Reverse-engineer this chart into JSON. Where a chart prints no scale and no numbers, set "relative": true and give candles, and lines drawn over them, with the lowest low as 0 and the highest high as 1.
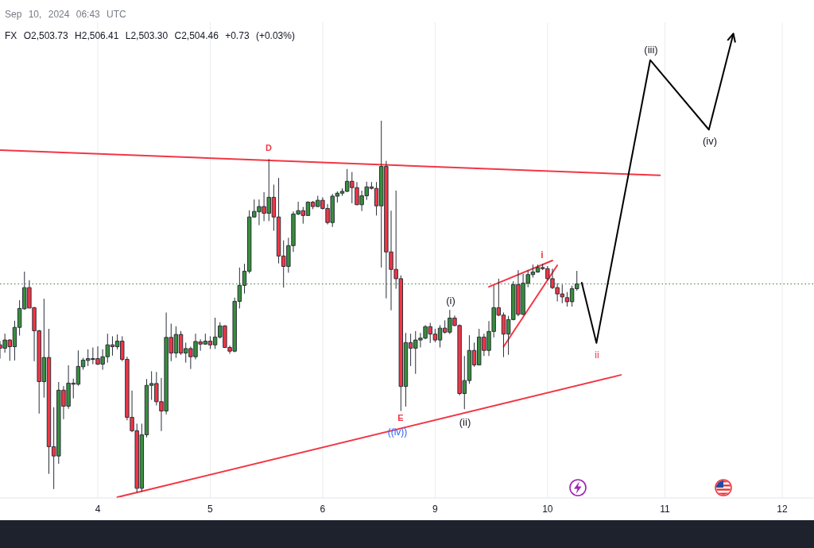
{
  "chart_data": {
    "type": "candlestick",
    "relative": true,
    "grid": "x",
    "categories": [
      null,
      null,
      null,
      null,
      null,
      null,
      null,
      null,
      null,
      null,
      null,
      null,
      null,
      null,
      null,
      null,
      null,
      null,
      null,
      null,
      "4",
      null,
      null,
      null,
      null,
      null,
      null,
      null,
      null,
      null,
      null,
      null,
      null,
      null,
      null,
      null,
      null,
      null,
      null,
      null,
      null,
      null,
      null,
      "5",
      null,
      null,
      null,
      null,
      null,
      null,
      null,
      null,
      null,
      null,
      null,
      null,
      null,
      null,
      null,
      null,
      null,
      null,
      null,
      null,
      null,
      null,
      "6",
      null,
      null,
      null,
      null,
      null,
      null,
      null,
      null,
      null,
      null,
      null,
      null,
      null,
      null,
      null,
      null,
      null,
      null,
      null,
      null,
      null,
      null,
      "9",
      null,
      null,
      null,
      null,
      null,
      null,
      null,
      null,
      null,
      null,
      null,
      null,
      null,
      null,
      null,
      null,
      null,
      null,
      null,
      null,
      null,
      null,
      "10",
      null,
      null,
      null,
      null,
      null,
      null,
      null,
      null,
      null,
      null,
      null,
      null,
      null,
      null,
      null,
      null,
      null,
      null,
      null,
      null,
      null,
      null,
      null,
      "11",
      null,
      null,
      null,
      null,
      null,
      null,
      null,
      null,
      null,
      null,
      null,
      null,
      null,
      null,
      null,
      null,
      null,
      null,
      null,
      null,
      null,
      null,
      null,
      "12",
      null,
      null,
      null,
      null,
      null,
      null
    ],
    "ohlc": [
      [
        0.397,
        0.407,
        0.36,
        0.388
      ],
      [
        0.388,
        0.427,
        0.376,
        0.41
      ],
      [
        0.41,
        0.412,
        0.354,
        0.392
      ],
      [
        0.392,
        0.462,
        0.355,
        0.444
      ],
      [
        0.444,
        0.517,
        0.422,
        0.495
      ],
      [
        0.494,
        0.594,
        0.491,
        0.551
      ],
      [
        0.551,
        0.571,
        0.496,
        0.496
      ],
      [
        0.497,
        0.499,
        0.353,
        0.435
      ],
      [
        0.435,
        0.437,
        0.212,
        0.298
      ],
      [
        0.298,
        0.521,
        0.255,
        0.363
      ],
      [
        0.363,
        0.44,
        0.05,
        0.123
      ],
      [
        0.123,
        0.229,
        0.009,
        0.098
      ],
      [
        0.098,
        0.297,
        0.077,
        0.275
      ],
      [
        0.275,
        0.286,
        0.197,
        0.232
      ],
      [
        0.232,
        0.342,
        0.225,
        0.294
      ],
      [
        0.294,
        0.306,
        0.253,
        0.291
      ],
      [
        0.291,
        0.382,
        0.287,
        0.339
      ],
      [
        0.338,
        0.362,
        0.33,
        0.356
      ],
      [
        0.355,
        0.385,
        0.34,
        0.36
      ],
      [
        0.359,
        0.39,
        0.345,
        0.36
      ],
      [
        0.36,
        0.393,
        0.343,
        0.345
      ],
      [
        0.345,
        0.385,
        0.33,
        0.365
      ],
      [
        0.365,
        0.427,
        0.349,
        0.397
      ],
      [
        0.397,
        0.42,
        0.368,
        0.392
      ],
      [
        0.392,
        0.425,
        0.385,
        0.407
      ],
      [
        0.407,
        0.42,
        0.353,
        0.358
      ],
      [
        0.358,
        0.365,
        0.194,
        0.202
      ],
      [
        0.202,
        0.274,
        0.162,
        0.166
      ],
      [
        0.166,
        0.185,
        0,
        0.011
      ],
      [
        0.011,
        0.185,
        0.002,
        0.155
      ],
      [
        0.155,
        0.305,
        0.148,
        0.288
      ],
      [
        0.288,
        0.326,
        0.249,
        0.293
      ],
      [
        0.293,
        0.324,
        0.234,
        0.244
      ],
      [
        0.244,
        0.308,
        0.165,
        0.219
      ],
      [
        0.219,
        0.484,
        0.21,
        0.417
      ],
      [
        0.417,
        0.454,
        0.353,
        0.375
      ],
      [
        0.375,
        0.447,
        0.362,
        0.425
      ],
      [
        0.425,
        0.434,
        0.37,
        0.375
      ],
      [
        0.375,
        0.403,
        0.349,
        0.387
      ],
      [
        0.387,
        0.392,
        0.332,
        0.365
      ],
      [
        0.365,
        0.427,
        0.358,
        0.406
      ],
      [
        0.405,
        0.412,
        0.381,
        0.399
      ],
      [
        0.399,
        0.427,
        0.397,
        0.407
      ],
      [
        0.407,
        0.42,
        0.386,
        0.397
      ],
      [
        0.397,
        0.47,
        0.386,
        0.418
      ],
      [
        0.418,
        0.458,
        0.414,
        0.448
      ],
      [
        0.448,
        0.45,
        0.389,
        0.39
      ],
      [
        0.39,
        0.395,
        0.373,
        0.38
      ],
      [
        0.38,
        0.524,
        0.377,
        0.514
      ],
      [
        0.514,
        0.605,
        0.495,
        0.557
      ],
      [
        0.557,
        0.615,
        0.535,
        0.595
      ],
      [
        0.595,
        0.759,
        0.589,
        0.741
      ],
      [
        0.741,
        0.788,
        0.739,
        0.756
      ],
      [
        0.755,
        0.788,
        0.719,
        0.769
      ],
      [
        0.769,
        0.808,
        0.73,
        0.751
      ],
      [
        0.751,
        0.897,
        0.73,
        0.794
      ],
      [
        0.794,
        0.828,
        0.704,
        0.741
      ],
      [
        0.741,
        0.846,
        0.616,
        0.636
      ],
      [
        0.636,
        0.678,
        0.551,
        0.608
      ],
      [
        0.608,
        0.685,
        0.591,
        0.664
      ],
      [
        0.664,
        0.756,
        0.647,
        0.749
      ],
      [
        0.749,
        0.782,
        0.746,
        0.758
      ],
      [
        0.758,
        0.768,
        0.723,
        0.745
      ],
      [
        0.745,
        0.783,
        0.744,
        0.781
      ],
      [
        0.781,
        0.784,
        0.762,
        0.769
      ],
      [
        0.769,
        0.798,
        0.768,
        0.786
      ],
      [
        0.786,
        0.794,
        0.761,
        0.764
      ],
      [
        0.764,
        0.776,
        0.721,
        0.726
      ],
      [
        0.726,
        0.803,
        0.714,
        0.797
      ],
      [
        0.797,
        0.81,
        0.78,
        0.805
      ],
      [
        0.805,
        0.818,
        0.798,
        0.81
      ],
      [
        0.81,
        0.87,
        0.808,
        0.837
      ],
      [
        0.837,
        0.862,
        0.778,
        0.82
      ],
      [
        0.82,
        0.835,
        0.773,
        0.774
      ],
      [
        0.774,
        0.812,
        0.757,
        0.798
      ],
      [
        0.798,
        0.836,
        0.787,
        0.822
      ],
      [
        0.822,
        0.835,
        0.815,
        0.818
      ],
      [
        0.818,
        0.835,
        0.745,
        0.771
      ],
      [
        0.771,
        1,
        0.605,
        0.877
      ],
      [
        0.877,
        0.892,
        0.522,
        0.647
      ],
      [
        0.647,
        0.758,
        0.49,
        0.6
      ],
      [
        0.6,
        0.812,
        0.548,
        0.575
      ],
      [
        0.575,
        0.584,
        0.219,
        0.285
      ],
      [
        0.285,
        0.429,
        0.231,
        0.403
      ],
      [
        0.403,
        0.427,
        0.34,
        0.388
      ],
      [
        0.388,
        0.434,
        0.319,
        0.41
      ],
      [
        0.41,
        0.429,
        0.39,
        0.415
      ],
      [
        0.415,
        0.45,
        0.412,
        0.446
      ],
      [
        0.446,
        0.456,
        0.402,
        0.426
      ],
      [
        0.426,
        0.44,
        0.404,
        0.41
      ],
      [
        0.41,
        0.45,
        0.39,
        0.442
      ],
      [
        0.442,
        0.463,
        0.427,
        0.431
      ],
      [
        0.431,
        0.491,
        0.426,
        0.469
      ],
      [
        0.469,
        0.476,
        0.447,
        0.449
      ],
      [
        0.449,
        0.452,
        0.261,
        0.266
      ],
      [
        0.266,
        0.367,
        0.224,
        0.301
      ],
      [
        0.301,
        0.423,
        0.292,
        0.382
      ],
      [
        0.382,
        0.403,
        0.338,
        0.343
      ],
      [
        0.343,
        0.44,
        0.342,
        0.418
      ],
      [
        0.418,
        0.427,
        0.367,
        0.382
      ],
      [
        0.382,
        0.461,
        0.367,
        0.433
      ],
      [
        0.433,
        0.557,
        0.417,
        0.497
      ],
      [
        0.497,
        0.575,
        0.474,
        0.477
      ],
      [
        0.477,
        0.484,
        0.364,
        0.426
      ],
      [
        0.426,
        0.475,
        0.37,
        0.465
      ],
      [
        0.465,
        0.568,
        0.463,
        0.559
      ],
      [
        0.559,
        0.598,
        0.474,
        0.479
      ],
      [
        0.479,
        0.588,
        0.477,
        0.563
      ],
      [
        0.563,
        0.598,
        0.552,
        0.586
      ],
      [
        0.586,
        0.613,
        0.578,
        0.593
      ],
      [
        0.593,
        0.613,
        0.591,
        0.605
      ],
      [
        0.605,
        0.615,
        0.598,
        0.602
      ],
      [
        0.602,
        0.609,
        0.57,
        0.575
      ],
      [
        0.575,
        0.602,
        0.547,
        0.551
      ],
      [
        0.551,
        0.563,
        0.514,
        0.534
      ],
      [
        0.534,
        0.559,
        0.509,
        0.526
      ],
      [
        0.524,
        0.539,
        0.5,
        0.513
      ],
      [
        0.513,
        0.556,
        0.5,
        0.548
      ],
      [
        0.548,
        0.596,
        0.543,
        0.561
      ],
      null,
      null,
      null,
      null,
      null,
      null,
      null,
      null,
      null,
      null,
      null,
      null,
      null,
      null,
      null,
      null,
      null,
      null,
      null,
      null,
      null,
      null,
      null,
      null,
      null,
      null,
      null,
      null,
      null,
      null,
      null,
      null,
      null,
      null,
      null,
      null,
      null,
      null,
      null,
      null,
      null,
      null,
      null,
      null,
      null,
      null,
      null,
      null
    ],
    "colors": [
      "#f23645",
      "#388e3c",
      "#f23645",
      "#388e3c",
      "#388e3c",
      "#388e3c",
      "#f23645",
      "#f23645",
      "#f23645",
      "#388e3c",
      "#f23645",
      "#f23645",
      "#388e3c",
      "#f23645",
      "#388e3c",
      "#f23645",
      "#388e3c",
      "#388e3c",
      "#388e3c",
      "#388e3c",
      "#f23645",
      "#388e3c",
      "#388e3c",
      "#f23645",
      "#388e3c",
      "#f23645",
      "#f23645",
      "#f23645",
      "#f23645",
      "#388e3c",
      "#388e3c",
      "#388e3c",
      "#f23645",
      "#f23645",
      "#388e3c",
      "#f23645",
      "#388e3c",
      "#f23645",
      "#388e3c",
      "#f23645",
      "#388e3c",
      "#f23645",
      "#388e3c",
      "#f23645",
      "#388e3c",
      "#388e3c",
      "#f23645",
      "#f23645",
      "#388e3c",
      "#388e3c",
      "#388e3c",
      "#388e3c",
      "#388e3c",
      "#388e3c",
      "#f23645",
      "#388e3c",
      "#f23645",
      "#f23645",
      "#f23645",
      "#388e3c",
      "#388e3c",
      "#388e3c",
      "#f23645",
      "#388e3c",
      "#f23645",
      "#388e3c",
      "#f23645",
      "#f23645",
      "#388e3c",
      "#388e3c",
      "#388e3c",
      "#388e3c",
      "#f23645",
      "#f23645",
      "#388e3c",
      "#388e3c",
      "#f23645",
      "#f23645",
      "#388e3c",
      "#f23645",
      "#f23645",
      "#f23645",
      "#f23645",
      "#388e3c",
      "#f23645",
      "#388e3c",
      "#388e3c",
      "#388e3c",
      "#f23645",
      "#f23645",
      "#388e3c",
      "#f23645",
      "#388e3c",
      "#f23645",
      "#f23645",
      "#388e3c",
      "#388e3c",
      "#f23645",
      "#388e3c",
      "#f23645",
      "#388e3c",
      "#388e3c",
      "#f23645",
      "#f23645",
      "#388e3c",
      "#388e3c",
      "#f23645",
      "#388e3c",
      "#388e3c",
      "#388e3c",
      "#388e3c",
      "#f23645",
      "#f23645",
      "#f23645",
      "#f23645",
      "#f23645",
      "#f23645",
      "#388e3c",
      "#388e3c",
      null,
      null,
      null,
      null,
      null,
      null,
      null,
      null,
      null,
      null,
      null,
      null,
      null,
      null,
      null,
      null,
      null,
      null,
      null,
      null,
      null,
      null,
      null,
      null,
      null,
      null,
      null,
      null,
      null,
      null,
      null,
      null,
      null,
      null,
      null,
      null,
      null,
      null,
      null,
      null,
      null,
      null,
      null,
      null,
      null,
      null,
      null,
      null
    ],
    "series": [
      {
        "type": "line",
        "color": "#f23645",
        "values": [
          0.921,
          null,
          null,
          null,
          null,
          null,
          null,
          null,
          null,
          null,
          null,
          null,
          null,
          null,
          null,
          null,
          null,
          null,
          null,
          null,
          null,
          null,
          null,
          null,
          null,
          null,
          null,
          null,
          null,
          null,
          null,
          null,
          null,
          null,
          null,
          null,
          null,
          null,
          null,
          null,
          null,
          null,
          null,
          null,
          null,
          null,
          null,
          null,
          null,
          null,
          null,
          null,
          null,
          null,
          null,
          null,
          null,
          null,
          null,
          null,
          null,
          null,
          null,
          null,
          null,
          null,
          null,
          null,
          null,
          null,
          null,
          null,
          null,
          null,
          null,
          null,
          null,
          null,
          null,
          null,
          null,
          null,
          null,
          null,
          null,
          null,
          null,
          null,
          null,
          null,
          null,
          null,
          null,
          null,
          null,
          null,
          null,
          null,
          null,
          null,
          null,
          null,
          null,
          null,
          null,
          null,
          null,
          null,
          null,
          null,
          null,
          null,
          null,
          null,
          null,
          null,
          null,
          null,
          null,
          null,
          null,
          null,
          null,
          null,
          null,
          null,
          null,
          null,
          null,
          null,
          null,
          null,
          null,
          null,
          null,
          0.853,
          null,
          null,
          null,
          null,
          null,
          null,
          null,
          null,
          null,
          null,
          null,
          null,
          null,
          null,
          null,
          null,
          null,
          null,
          null,
          null,
          null,
          null,
          null,
          null,
          null,
          null,
          null,
          null,
          null,
          null,
          null
        ]
      },
      {
        "type": "line",
        "color": "#f23645",
        "values": [
          null,
          null,
          null,
          null,
          null,
          null,
          null,
          null,
          null,
          null,
          null,
          null,
          null,
          null,
          null,
          null,
          null,
          null,
          null,
          null,
          null,
          null,
          null,
          null,
          -0.013,
          null,
          null,
          null,
          null,
          null,
          null,
          null,
          null,
          null,
          null,
          null,
          null,
          null,
          null,
          null,
          null,
          null,
          null,
          null,
          null,
          null,
          null,
          null,
          null,
          null,
          null,
          null,
          null,
          null,
          null,
          null,
          null,
          null,
          null,
          null,
          null,
          null,
          null,
          null,
          null,
          null,
          null,
          null,
          null,
          null,
          null,
          null,
          null,
          null,
          null,
          null,
          null,
          null,
          null,
          null,
          null,
          null,
          null,
          null,
          null,
          null,
          null,
          null,
          null,
          null,
          null,
          null,
          null,
          null,
          null,
          null,
          null,
          null,
          null,
          null,
          null,
          null,
          null,
          null,
          null,
          null,
          null,
          null,
          null,
          null,
          null,
          null,
          null,
          null,
          null,
          null,
          null,
          null,
          null,
          null,
          null,
          null,
          null,
          null,
          null,
          null,
          null,
          0.316,
          null,
          null,
          null,
          null,
          null,
          null,
          null,
          null,
          null,
          null,
          null,
          null,
          null,
          null,
          null,
          null,
          null,
          null,
          null,
          null,
          null,
          null,
          null,
          null,
          null,
          null,
          null,
          null,
          null,
          null,
          null,
          null,
          null,
          null,
          null,
          null,
          null,
          null,
          null
        ]
      },
      {
        "type": "line",
        "color": "#f23645",
        "values": [
          null,
          null,
          null,
          null,
          null,
          null,
          null,
          null,
          null,
          null,
          null,
          null,
          null,
          null,
          null,
          null,
          null,
          null,
          null,
          null,
          null,
          null,
          null,
          null,
          null,
          null,
          null,
          null,
          null,
          null,
          null,
          null,
          null,
          null,
          null,
          null,
          null,
          null,
          null,
          null,
          null,
          null,
          null,
          null,
          null,
          null,
          null,
          null,
          null,
          null,
          null,
          null,
          null,
          null,
          null,
          null,
          null,
          null,
          null,
          null,
          null,
          null,
          null,
          null,
          null,
          null,
          null,
          null,
          null,
          null,
          null,
          null,
          null,
          null,
          null,
          null,
          null,
          null,
          null,
          null,
          null,
          null,
          null,
          null,
          null,
          null,
          null,
          null,
          null,
          null,
          null,
          null,
          null,
          null,
          null,
          null,
          null,
          null,
          null,
          null,
          0.553,
          null,
          null,
          null,
          null,
          null,
          null,
          null,
          null,
          null,
          null,
          null,
          null,
          0.624,
          null,
          null,
          null,
          null,
          null,
          null,
          null,
          null,
          null,
          null,
          null,
          null,
          null,
          null,
          null,
          null,
          null,
          null,
          null,
          null,
          null,
          null,
          null,
          null,
          null,
          null,
          null,
          null,
          null,
          null,
          null,
          null,
          null,
          null,
          null,
          null,
          null,
          null,
          null,
          null,
          null,
          null,
          null,
          null,
          null,
          null,
          null,
          null,
          null,
          null,
          null,
          null,
          null
        ]
      },
      {
        "type": "line",
        "color": "#f23645",
        "values": [
          null,
          null,
          null,
          null,
          null,
          null,
          null,
          null,
          null,
          null,
          null,
          null,
          null,
          null,
          null,
          null,
          null,
          null,
          null,
          null,
          null,
          null,
          null,
          null,
          null,
          null,
          null,
          null,
          null,
          null,
          null,
          null,
          null,
          null,
          null,
          null,
          null,
          null,
          null,
          null,
          null,
          null,
          null,
          null,
          null,
          null,
          null,
          null,
          null,
          null,
          null,
          null,
          null,
          null,
          null,
          null,
          null,
          null,
          null,
          null,
          null,
          null,
          null,
          null,
          null,
          null,
          null,
          null,
          null,
          null,
          null,
          null,
          null,
          null,
          null,
          null,
          null,
          null,
          null,
          null,
          null,
          null,
          null,
          null,
          null,
          null,
          null,
          null,
          null,
          null,
          null,
          null,
          null,
          null,
          null,
          null,
          null,
          null,
          null,
          null,
          null,
          null,
          null,
          0.392,
          null,
          null,
          null,
          null,
          null,
          null,
          null,
          null,
          null,
          null,
          0.611,
          null,
          null,
          null,
          null,
          null,
          null,
          null,
          null,
          null,
          null,
          null,
          null,
          null,
          null,
          null,
          null,
          null,
          null,
          null,
          null,
          null,
          null,
          null,
          null,
          null,
          null,
          null,
          null,
          null,
          null,
          null,
          null,
          null,
          null,
          null,
          null,
          null,
          null,
          null,
          null,
          null,
          null,
          null,
          null,
          null,
          null,
          null,
          null,
          null,
          null,
          null,
          null
        ]
      },
      {
        "type": "line",
        "color": "#000000",
        "values": [
          null,
          null,
          null,
          null,
          null,
          null,
          null,
          null,
          null,
          null,
          null,
          null,
          null,
          null,
          null,
          null,
          null,
          null,
          null,
          null,
          null,
          null,
          null,
          null,
          null,
          null,
          null,
          null,
          null,
          null,
          null,
          null,
          null,
          null,
          null,
          null,
          null,
          null,
          null,
          null,
          null,
          null,
          null,
          null,
          null,
          null,
          null,
          null,
          null,
          null,
          null,
          null,
          null,
          null,
          null,
          null,
          null,
          null,
          null,
          null,
          null,
          null,
          null,
          null,
          null,
          null,
          null,
          null,
          null,
          null,
          null,
          null,
          null,
          null,
          null,
          null,
          null,
          null,
          null,
          null,
          null,
          null,
          null,
          null,
          null,
          null,
          null,
          null,
          null,
          null,
          null,
          null,
          null,
          null,
          null,
          null,
          null,
          null,
          null,
          null,
          null,
          null,
          null,
          null,
          null,
          null,
          null,
          null,
          null,
          null,
          null,
          null,
          null,
          null,
          null,
          null,
          null,
          null,
          null,
          0.564,
          null,
          null,
          0.402,
          null,
          null,
          null,
          null,
          null,
          null,
          null,
          null,
          null,
          null,
          1.163,
          null,
          null,
          null,
          null,
          null,
          null,
          null,
          null,
          null,
          null,
          null,
          0.976,
          null,
          null,
          null,
          null,
          1.234,
          null,
          null,
          null,
          null,
          null,
          null,
          null,
          null,
          null,
          null,
          null,
          null,
          null,
          null,
          null,
          null
        ]
      }
    ],
    "ref_lines": [
      {
        "axis": "y",
        "value": 0.561,
        "color": "#2e7d32",
        "line_style": "dotted"
      }
    ],
    "annotations": [
      "Sep 10, 2024 06:43 UTC",
      "FX O2,503.73 H2,506.41 L2,503.30 C2,504.46 +0.73 (+0.03%)",
      "D",
      "E",
      "((iv))",
      "(i)",
      "(ii)",
      "i",
      "ii",
      "(iii)",
      "(iv)"
    ]
  }
}
